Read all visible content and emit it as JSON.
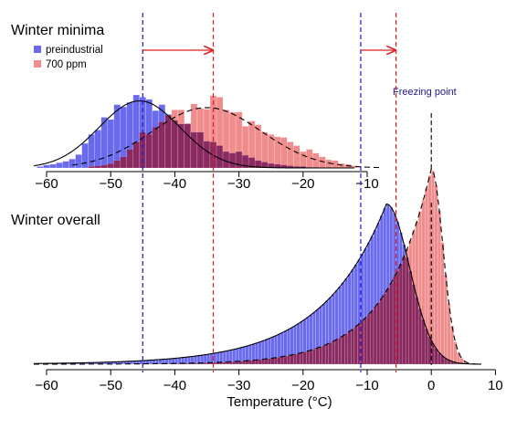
{
  "colors": {
    "preindustrial": "#6a6aee",
    "ppm700": "#f08c8c",
    "overlap": "#8a2a60",
    "blue_line": "#1a1ad8",
    "red_line": "#e0202a",
    "arrow": "#e02020",
    "freezing_text": "#1a1a8a"
  },
  "chart_data": [
    {
      "type": "bar",
      "title": "Winter minima",
      "legend": {
        "placement": "top-left",
        "entries": [
          "preindustrial",
          "700 ppm"
        ]
      },
      "xlim": [
        -65,
        -8
      ],
      "ylim": [
        0,
        1.05
      ],
      "x_ticks": [
        -60,
        -50,
        -40,
        -30,
        -20,
        -10
      ],
      "x_tick_labels": [
        "−60",
        "−50",
        "−40",
        "−30",
        "−20",
        "−10"
      ],
      "bin_width": 1,
      "series": [
        {
          "name": "preindustrial",
          "x": [
            -61,
            -60,
            -59,
            -58,
            -57,
            -56,
            -55,
            -54,
            -53,
            -52,
            -51,
            -50,
            -49,
            -48,
            -47,
            -46,
            -45,
            -44,
            -43,
            -42,
            -41,
            -40,
            -39,
            -38,
            -37,
            -36,
            -35,
            -34,
            -33,
            -32,
            -31,
            -30,
            -29,
            -28,
            -27,
            -26,
            -25,
            -24,
            -23,
            -22,
            -21,
            -20,
            -19,
            -18
          ],
          "values": [
            0.02,
            0.04,
            0.05,
            0.07,
            0.09,
            0.12,
            0.18,
            0.33,
            0.45,
            0.51,
            0.68,
            0.65,
            0.85,
            0.82,
            0.88,
            0.98,
            0.95,
            0.92,
            0.77,
            0.85,
            0.72,
            0.64,
            0.59,
            0.59,
            0.48,
            0.48,
            0.36,
            0.35,
            0.3,
            0.22,
            0.2,
            0.22,
            0.17,
            0.14,
            0.1,
            0.08,
            0.06,
            0.05,
            0.04,
            0.03,
            0.02,
            0.02,
            0.01,
            0.01
          ]
        },
        {
          "name": "700 ppm",
          "x": [
            -53,
            -52,
            -51,
            -50,
            -49,
            -48,
            -47,
            -46,
            -45,
            -44,
            -43,
            -42,
            -41,
            -40,
            -39,
            -38,
            -37,
            -36,
            -35,
            -34,
            -33,
            -32,
            -31,
            -30,
            -29,
            -28,
            -27,
            -26,
            -25,
            -24,
            -23,
            -22,
            -21,
            -20,
            -19,
            -18,
            -17,
            -16,
            -15,
            -14,
            -13,
            -12
          ],
          "values": [
            0.02,
            0.03,
            0.04,
            0.06,
            0.1,
            0.15,
            0.25,
            0.35,
            0.48,
            0.45,
            0.55,
            0.62,
            0.71,
            0.78,
            0.78,
            0.6,
            0.86,
            0.8,
            0.79,
            0.97,
            0.95,
            0.78,
            0.75,
            0.75,
            0.56,
            0.63,
            0.58,
            0.48,
            0.45,
            0.42,
            0.41,
            0.35,
            0.3,
            0.22,
            0.25,
            0.2,
            0.15,
            0.11,
            0.1,
            0.06,
            0.05,
            0.03
          ]
        }
      ],
      "density_curves": {
        "preindustrial": {
          "style": "solid",
          "mean": -45.5,
          "sd": 6.3,
          "peak": 0.9
        },
        "700 ppm": {
          "style": "dashed",
          "mean": -35,
          "sd": 8.5,
          "peak": 0.81
        }
      }
    },
    {
      "type": "bar",
      "title": "Winter overall",
      "xlabel": "Temperature (°C)",
      "xlim": [
        -65,
        10
      ],
      "ylim": [
        0,
        1.1
      ],
      "x_ticks": [
        -60,
        -50,
        -40,
        -30,
        -20,
        -10,
        0,
        10
      ],
      "x_tick_labels": [
        "−60",
        "−50",
        "−40",
        "−30",
        "−20",
        "−10",
        "0",
        "10"
      ],
      "bin_width": 1,
      "series": [
        {
          "name": "preindustrial",
          "shape": {
            "peak_x": -7,
            "peak": 0.82,
            "left_rate": 0.1,
            "right_sd": 3.6
          }
        },
        {
          "name": "700 ppm",
          "shape": {
            "peak_x": 0,
            "peak": 1.0,
            "left_rate": 0.14,
            "right_sd": 1.8
          }
        }
      ]
    }
  ],
  "reference_lines": {
    "blue": [
      -45,
      -11
    ],
    "red": [
      -34,
      -5.5
    ],
    "freezing": 0
  },
  "annotations": {
    "freezing_label": "Freezing point",
    "arrows": [
      {
        "from": -45,
        "to": -34
      },
      {
        "from": -11,
        "to": -5.5
      }
    ]
  }
}
